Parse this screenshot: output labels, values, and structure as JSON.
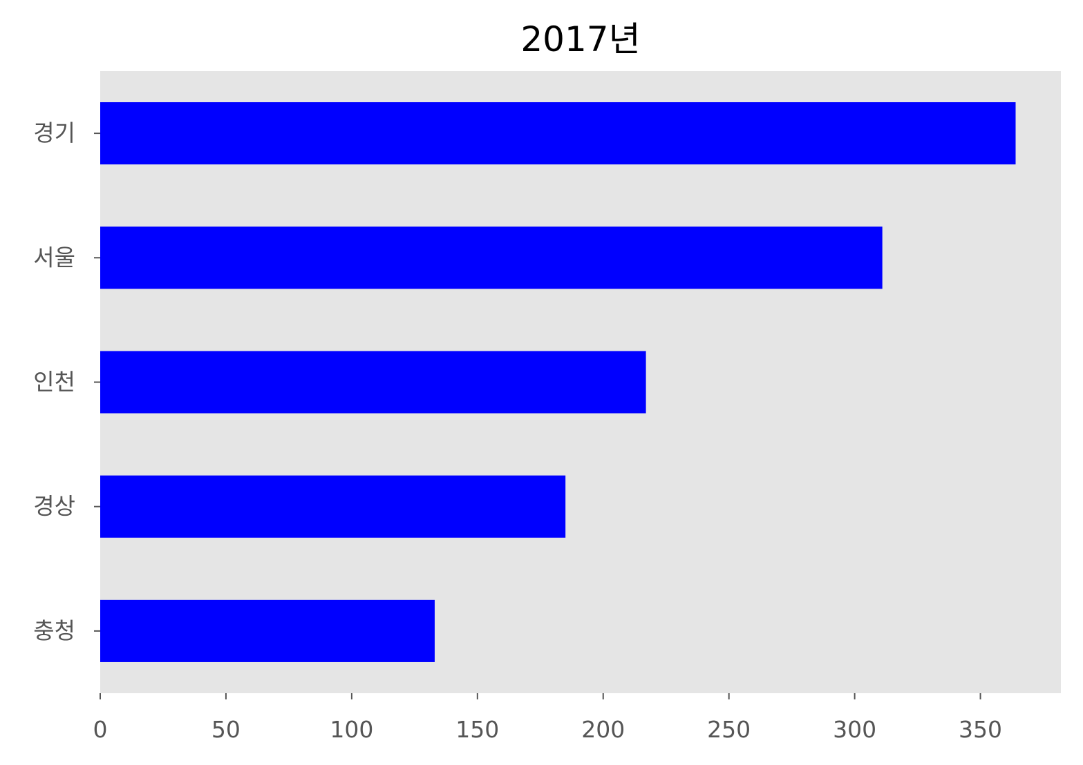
{
  "chart_data": {
    "type": "bar",
    "orientation": "horizontal",
    "title": "2017년",
    "xlabel": "",
    "ylabel": "",
    "categories": [
      "경기",
      "서울",
      "인천",
      "경상",
      "충청"
    ],
    "values": [
      364,
      311,
      217,
      185,
      133
    ],
    "xlim": [
      0,
      382
    ],
    "xticks": [
      0,
      50,
      100,
      150,
      200,
      250,
      300,
      350
    ],
    "grid": false,
    "legend": "none",
    "colors": {
      "bar": "#0000ff",
      "plot_background": "#e5e5e5",
      "tick_label": "#555555",
      "title": "#000000"
    }
  }
}
